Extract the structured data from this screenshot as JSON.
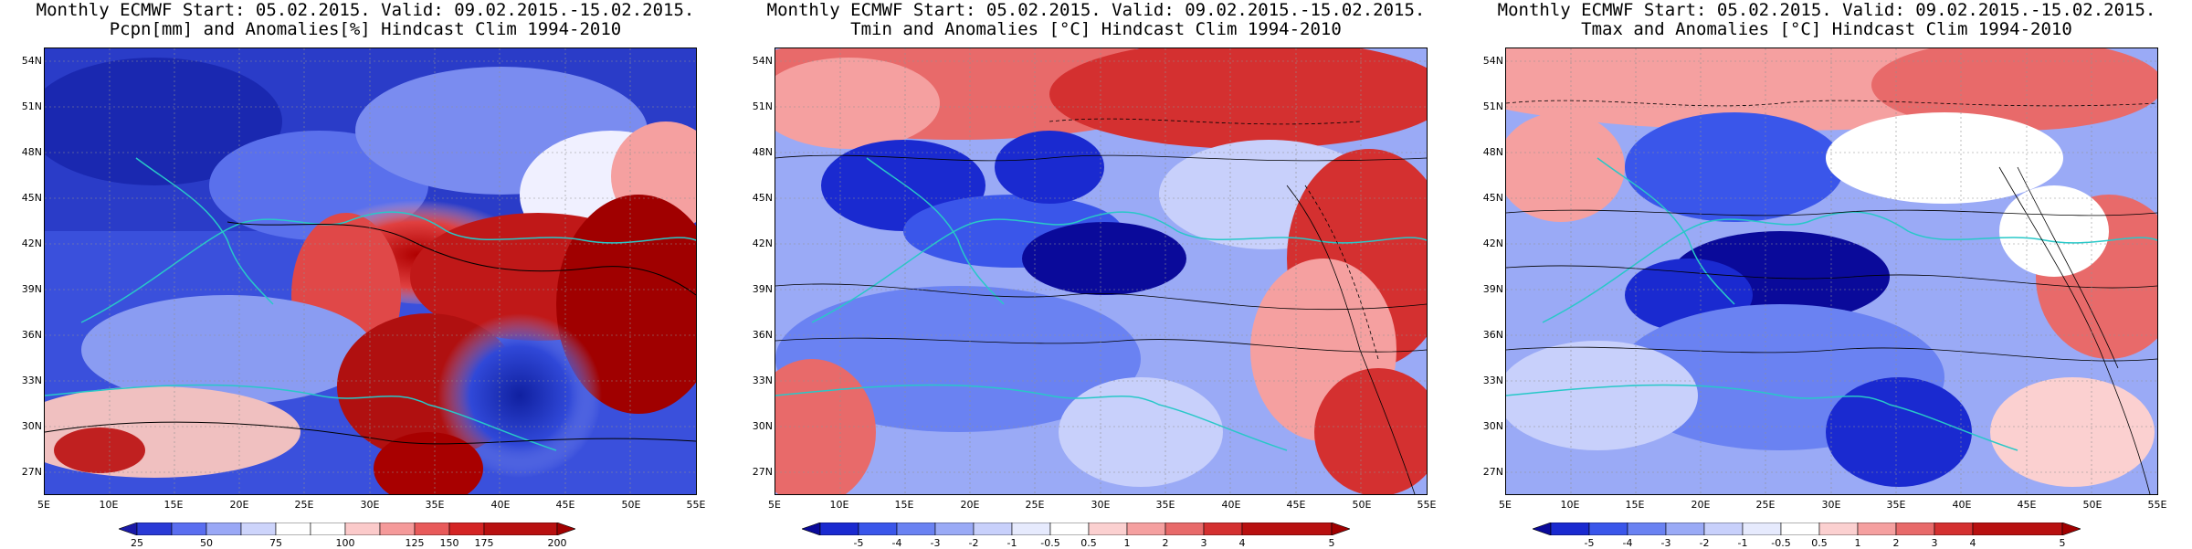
{
  "panels": [
    {
      "title_line1": "Monthly ECMWF Start: 05.02.2015. Valid: 09.02.2015.-15.02.2015.",
      "title_line2": "Pcpn[mm] and Anomalies[%] Hindcast Clim 1994-2010",
      "colorbar_labels": [
        "25",
        "50",
        "75",
        "100",
        "125",
        "150",
        "175",
        "200"
      ],
      "colorbar_colors": [
        "#1a1aa8",
        "#2a3ad6",
        "#5a6ef0",
        "#9aa8f6",
        "#cdd4fb",
        "#ffffff",
        "#ffffff",
        "#fbcaca",
        "#f59a9a",
        "#e85a5a",
        "#d42424",
        "#a00000"
      ],
      "field": "precip"
    },
    {
      "title_line1": "Monthly ECMWF Start: 05.02.2015. Valid: 09.02.2015.-15.02.2015.",
      "title_line2": "Tmin and Anomalies [°C] Hindcast Clim 1994-2010",
      "colorbar_labels": [
        "-5",
        "-4",
        "-3",
        "-2",
        "-1",
        "-0.5",
        "0.5",
        "1",
        "2",
        "3",
        "4",
        "5"
      ],
      "colorbar_colors": [
        "#0a0a9a",
        "#1a2ad0",
        "#3a56ea",
        "#6a82f2",
        "#9aaaf6",
        "#c8d0fb",
        "#ffffff",
        "#fbd0d0",
        "#f5a0a0",
        "#e86a6a",
        "#d43030",
        "#a00000"
      ],
      "field": "tmin"
    },
    {
      "title_line1": "Monthly ECMWF Start: 05.02.2015. Valid: 09.02.2015.-15.02.2015.",
      "title_line2": "Tmax and Anomalies [°C] Hindcast Clim 1994-2010",
      "colorbar_labels": [
        "-5",
        "-4",
        "-3",
        "-2",
        "-1",
        "-0.5",
        "0.5",
        "1",
        "2",
        "3",
        "4",
        "5"
      ],
      "colorbar_colors": [
        "#0a0a9a",
        "#1a2ad0",
        "#3a56ea",
        "#6a82f2",
        "#9aaaf6",
        "#c8d0fb",
        "#ffffff",
        "#fbd0d0",
        "#f5a0a0",
        "#e86a6a",
        "#d43030",
        "#a00000"
      ],
      "field": "tmax"
    }
  ],
  "lat_labels": [
    "54N",
    "51N",
    "48N",
    "45N",
    "42N",
    "39N",
    "36N",
    "33N",
    "30N",
    "27N"
  ],
  "lon_labels": [
    "5E",
    "10E",
    "15E",
    "20E",
    "25E",
    "30E",
    "35E",
    "40E",
    "45E",
    "50E",
    "55E"
  ],
  "map_extent": {
    "lon": [
      5,
      55
    ],
    "lat": [
      25,
      55
    ]
  },
  "colors": {
    "coastline": "#28c8c8",
    "contour": "#000000"
  }
}
